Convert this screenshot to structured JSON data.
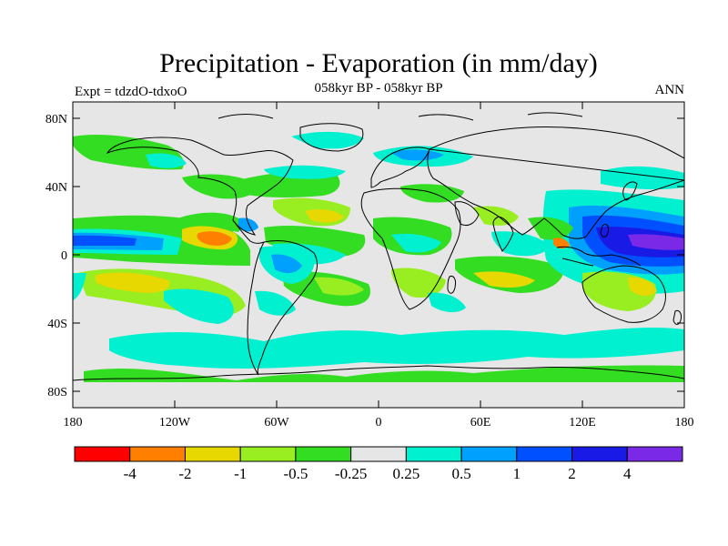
{
  "title": "Precipitation - Evaporation (in mm/day)",
  "subtitle": "058kyr BP - 058kyr BP",
  "experiment_label": "Expt = tdzdO-tdxoO",
  "season_label": "ANN",
  "lat_ticks": [
    "80N",
    "40N",
    "0",
    "40S",
    "80S"
  ],
  "lon_ticks": [
    "180",
    "120W",
    "60W",
    "0",
    "60E",
    "120E",
    "180"
  ],
  "colorbar": {
    "colors": [
      "#ff0000",
      "#ff8000",
      "#e6d800",
      "#99ee22",
      "#33dd22",
      "#e6e6e6",
      "#00f0d0",
      "#00a0ff",
      "#0050ff",
      "#1a1ae6",
      "#7a2ae6"
    ],
    "labels": [
      "-4",
      "-2",
      "-1",
      "-0.5",
      "-0.25",
      "0.25",
      "0.5",
      "1",
      "2",
      "4"
    ]
  },
  "colors": {
    "ocean_neutral": "#e6e6e6",
    "coast": "#000000"
  }
}
